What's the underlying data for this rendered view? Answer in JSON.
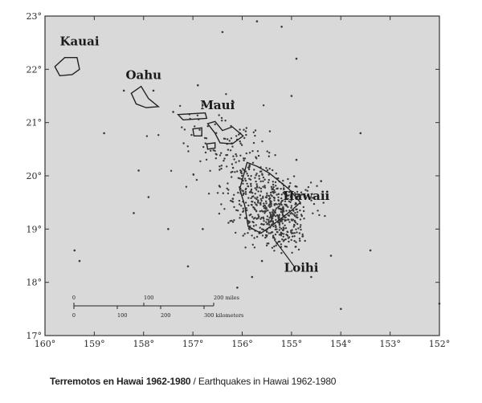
{
  "map": {
    "lon_range": [
      -160,
      -152
    ],
    "lat_range": [
      17,
      23
    ],
    "lon_ticks": [
      {
        "value": -160,
        "label": "160°"
      },
      {
        "value": -159,
        "label": "159°"
      },
      {
        "value": -158,
        "label": "158°"
      },
      {
        "value": -157,
        "label": "157°"
      },
      {
        "value": -156,
        "label": "156°"
      },
      {
        "value": -155,
        "label": "155°"
      },
      {
        "value": -154,
        "label": "154°"
      },
      {
        "value": -153,
        "label": "153°"
      },
      {
        "value": -152,
        "label": "152°"
      }
    ],
    "lat_ticks": [
      {
        "value": 17,
        "label": "17°"
      },
      {
        "value": 18,
        "label": "18°"
      },
      {
        "value": 19,
        "label": "19°"
      },
      {
        "value": 20,
        "label": "20°"
      },
      {
        "value": 21,
        "label": "21°"
      },
      {
        "value": 22,
        "label": "22°"
      },
      {
        "value": 23,
        "label": "23°"
      }
    ],
    "background_color": "#d9d9d9",
    "labels": [
      {
        "id": "kauai",
        "text": "Kauai",
        "lon": -159.3,
        "lat": 22.45
      },
      {
        "id": "oahu",
        "text": "Oahu",
        "lon": -158.0,
        "lat": 21.82
      },
      {
        "id": "maui",
        "text": "Maui",
        "lon": -156.5,
        "lat": 21.25
      },
      {
        "id": "hawaii",
        "text": "Hawaii",
        "lon": -154.7,
        "lat": 19.55
      },
      {
        "id": "loihi",
        "text": "Loihi",
        "lon": -154.8,
        "lat": 18.2
      }
    ],
    "scale_bar": {
      "miles": [
        {
          "value": 0,
          "label": "0"
        },
        {
          "value": 100,
          "label": "100"
        },
        {
          "value": 200,
          "label": "200 miles"
        }
      ],
      "kilometers": [
        {
          "value": 0,
          "label": "0"
        },
        {
          "value": 100,
          "label": "100"
        },
        {
          "value": 200,
          "label": "200"
        },
        {
          "value": 300,
          "label": "300 kilometers"
        }
      ]
    }
  },
  "caption": {
    "spanish": "Terremotos en Hawai 1962-1980",
    "separator": " / ",
    "english": "Earthquakes in Hawai 1962-1980"
  }
}
